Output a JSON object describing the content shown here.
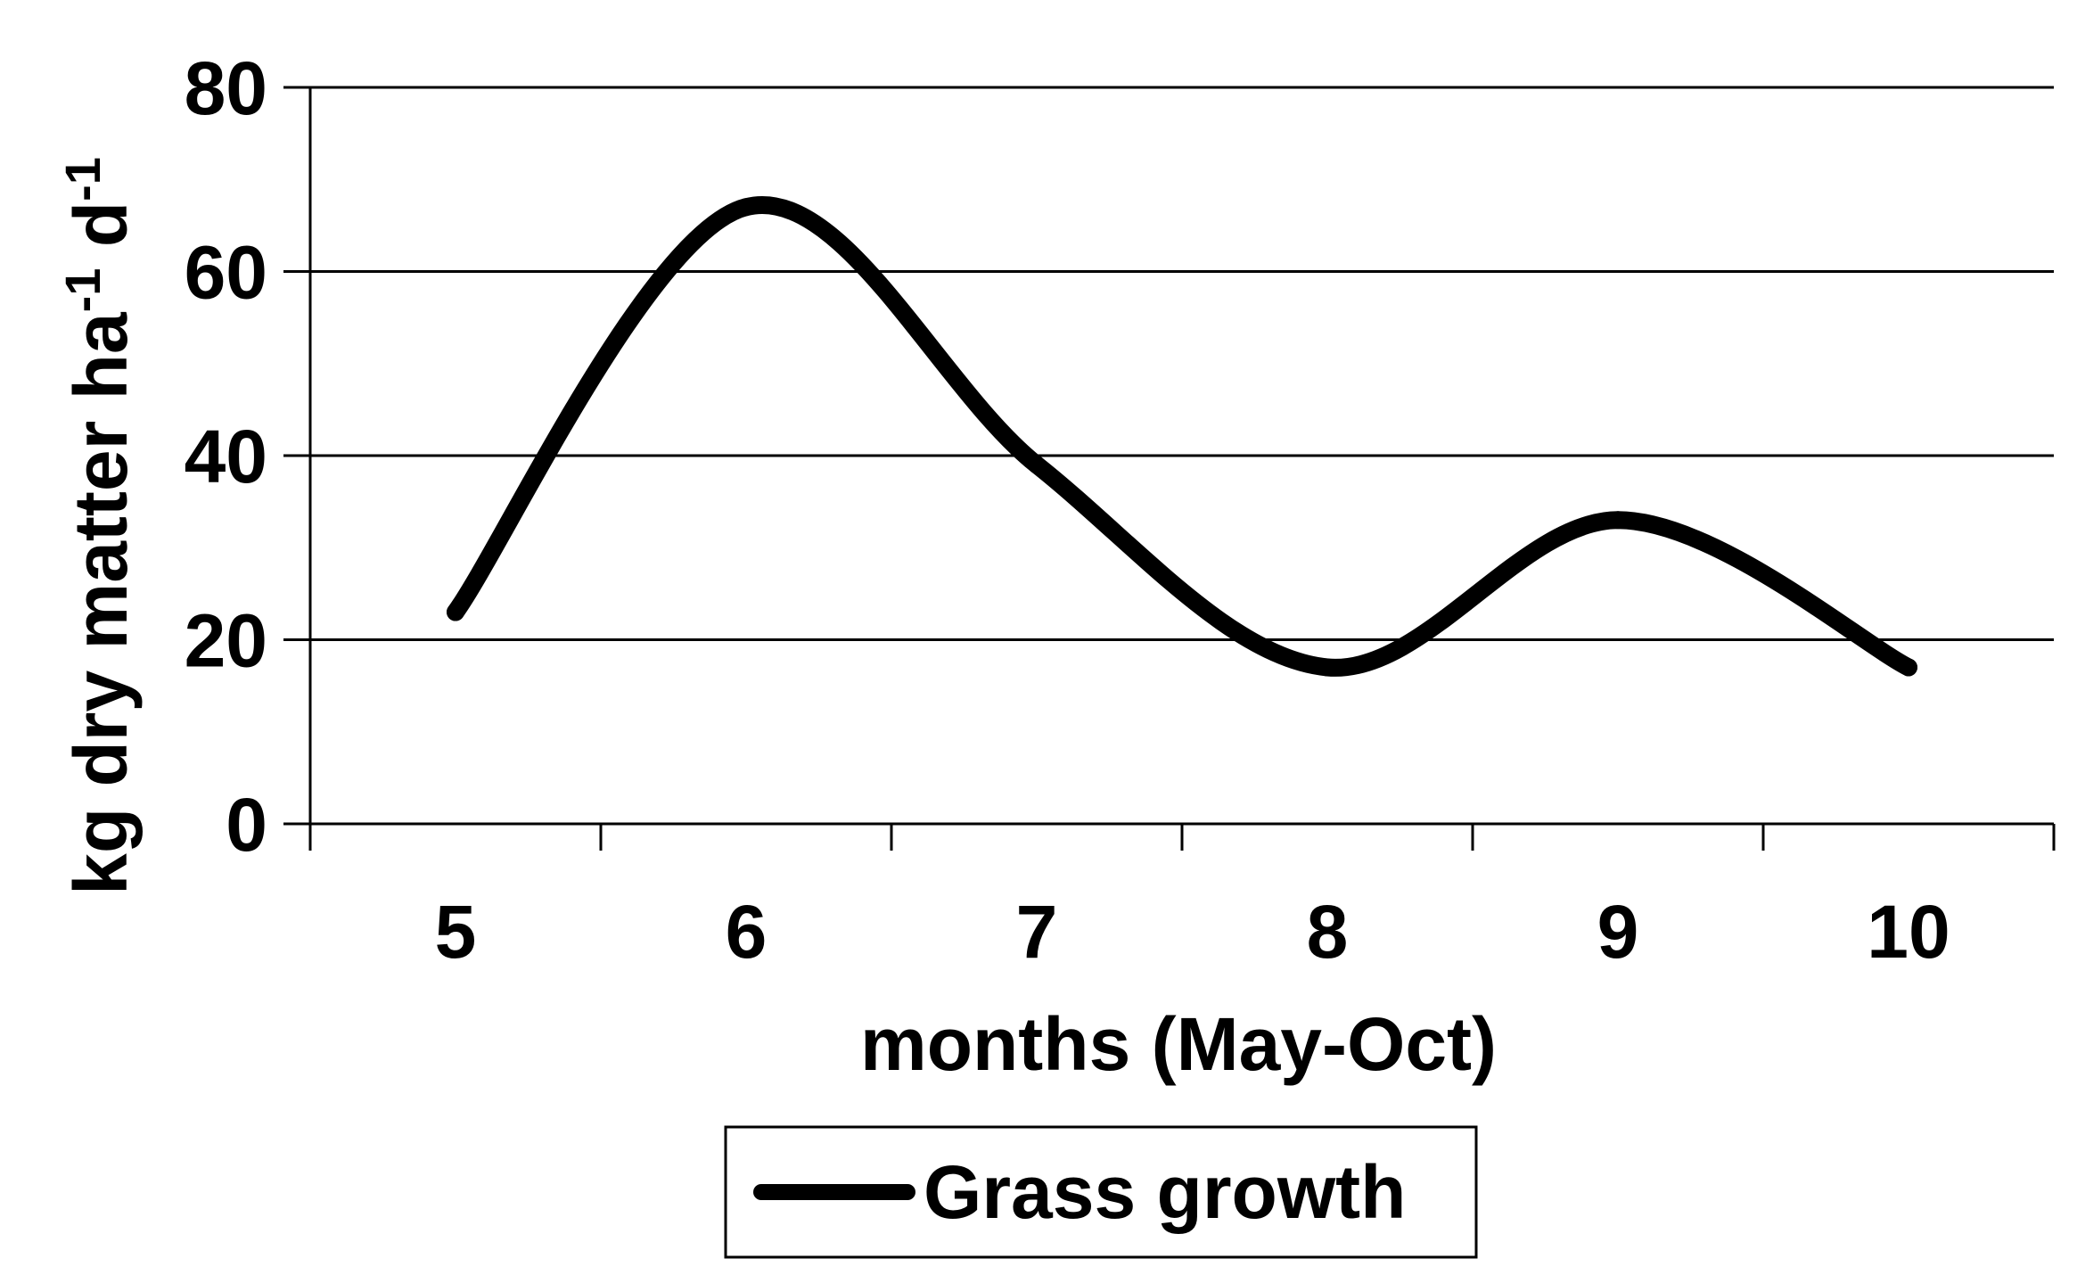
{
  "chart_data": {
    "type": "line",
    "title": "",
    "xlabel": "months (May-Oct)",
    "ylabel": {
      "text": "kg dry matter ha",
      "sup1": "-1",
      "mid": " d",
      "sup2": "-1"
    },
    "x": [
      5,
      6,
      7,
      8,
      9,
      10
    ],
    "ylim": [
      0,
      80
    ],
    "yticks": [
      0,
      20,
      40,
      60,
      80
    ],
    "grid": true,
    "legend_position": "bottom",
    "series": [
      {
        "name": "Grass growth",
        "color": "#000000",
        "smooth": true,
        "values": [
          23,
          67,
          39,
          17,
          33,
          17
        ]
      }
    ]
  }
}
